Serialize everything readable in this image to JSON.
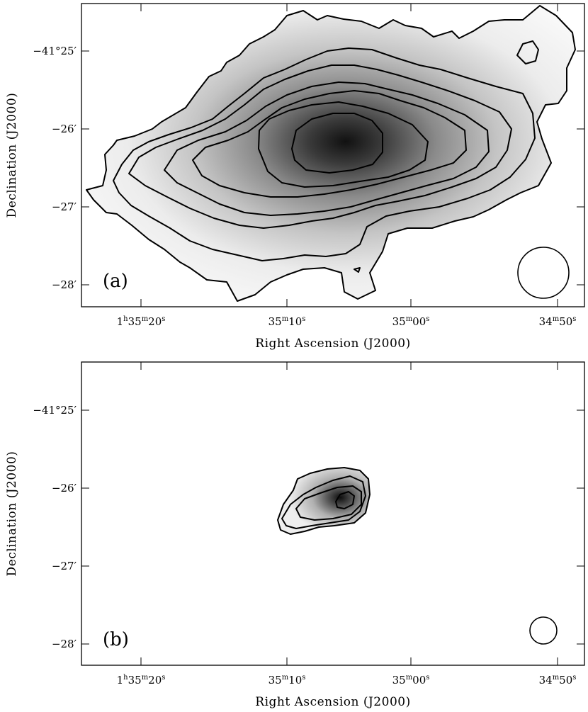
{
  "figure": {
    "panels": [
      {
        "id": "a",
        "label": "(a)",
        "xlabel": "Right Ascension (J2000)",
        "ylabel": "Declination (J2000)",
        "x_ticks": [
          {
            "main": "1",
            "sup1": "h",
            "m": "35",
            "sup2": "m",
            "s": "20",
            "sup3": "s"
          },
          {
            "main": "",
            "sup1": "",
            "m": "35",
            "sup2": "m",
            "s": "10",
            "sup3": "s"
          },
          {
            "main": "",
            "sup1": "",
            "m": "35",
            "sup2": "m",
            "s": "00",
            "sup3": "s"
          },
          {
            "main": "",
            "sup1": "",
            "m": "34",
            "sup2": "m",
            "s": "50",
            "sup3": "s"
          }
        ],
        "y_ticks": [
          "−41°25′",
          "−26′",
          "−27′",
          "−28′"
        ]
      },
      {
        "id": "b",
        "label": "(b)",
        "xlabel": "Right Ascension (J2000)",
        "ylabel": "Declination (J2000)",
        "x_ticks": [
          {
            "main": "1",
            "sup1": "h",
            "m": "35",
            "sup2": "m",
            "s": "20",
            "sup3": "s"
          },
          {
            "main": "",
            "sup1": "",
            "m": "35",
            "sup2": "m",
            "s": "10",
            "sup3": "s"
          },
          {
            "main": "",
            "sup1": "",
            "m": "35",
            "sup2": "m",
            "s": "00",
            "sup3": "s"
          },
          {
            "main": "",
            "sup1": "",
            "m": "34",
            "sup2": "m",
            "s": "50",
            "sup3": "s"
          }
        ],
        "y_ticks": [
          "−41°25′",
          "−26′",
          "−27′",
          "−28′"
        ]
      }
    ]
  }
}
